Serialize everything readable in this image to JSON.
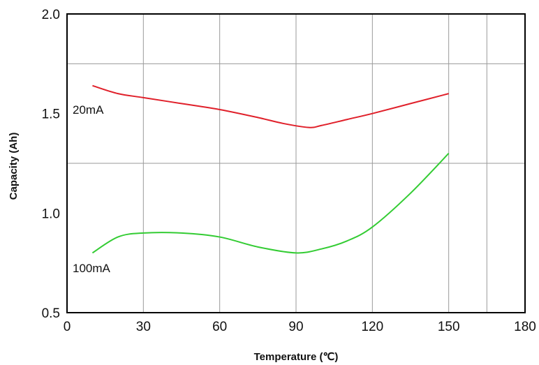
{
  "chart_data": {
    "type": "line",
    "title": "",
    "xlabel": "Temperature (℃)",
    "ylabel": "Capacity (Ah)",
    "xlim": [
      0,
      180
    ],
    "ylim": [
      0.5,
      2.0
    ],
    "x_ticks": [
      "0",
      "30",
      "60",
      "90",
      "120",
      "150",
      "180"
    ],
    "y_ticks": [
      "0.5",
      "1.0",
      "1.5",
      "2.0"
    ],
    "x_tick_values": [
      0,
      30,
      60,
      90,
      120,
      150,
      180
    ],
    "y_tick_values": [
      0.5,
      1.0,
      1.5,
      2.0
    ],
    "grid": true,
    "grid_x": [
      30,
      60,
      90,
      120,
      150,
      165
    ],
    "grid_y": [
      1.25,
      1.75
    ],
    "series": [
      {
        "name": "20mA",
        "color": "#e0202a",
        "x": [
          10,
          20,
          30,
          45,
          60,
          75,
          85,
          95,
          100,
          110,
          120,
          135,
          150
        ],
        "y": [
          1.64,
          1.6,
          1.58,
          1.55,
          1.52,
          1.48,
          1.45,
          1.43,
          1.44,
          1.47,
          1.5,
          1.55,
          1.6
        ]
      },
      {
        "name": "100mA",
        "color": "#33cc33",
        "x": [
          10,
          20,
          30,
          45,
          60,
          75,
          90,
          100,
          110,
          120,
          135,
          150
        ],
        "y": [
          0.8,
          0.88,
          0.9,
          0.9,
          0.88,
          0.83,
          0.8,
          0.82,
          0.86,
          0.93,
          1.1,
          1.3
        ]
      }
    ]
  }
}
